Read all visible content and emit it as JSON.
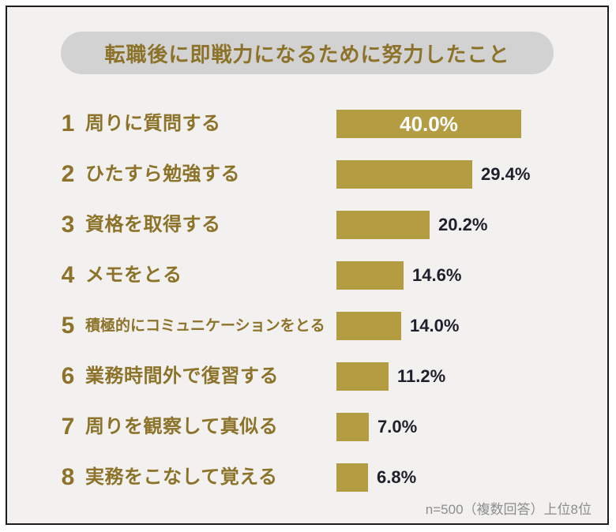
{
  "header": {
    "title": "転職後に即戦力になるために努力したこと"
  },
  "footer": {
    "note": "n=500（複数回答）上位8位"
  },
  "colors": {
    "bar": "#b39c42",
    "gold_text": "#8c7329",
    "value_text": "#20202c",
    "inside_bar_value": "#ffffff",
    "pill_bg": "#d2d2d2",
    "panel_bg": "#f2f1ef",
    "border": "#1c1c1c",
    "note_text": "#8d8d8d"
  },
  "chart_data": {
    "type": "bar",
    "orientation": "horizontal",
    "title": "転職後に即戦力になるために努力したこと",
    "ranks": [
      "1",
      "2",
      "3",
      "4",
      "5",
      "6",
      "7",
      "8"
    ],
    "categories": [
      "周りに質問する",
      "ひたすら勉強する",
      "資格を取得する",
      "メモをとる",
      "積極的にコミュニケーションをとる",
      "業務時間外で復習する",
      "周りを観察して真似る",
      "実務をこなして覚える"
    ],
    "values": [
      40.0,
      29.4,
      20.2,
      14.6,
      14.0,
      11.2,
      7.0,
      6.8
    ],
    "value_labels": [
      "40.0%",
      "29.4%",
      "20.2%",
      "14.6%",
      "14.0%",
      "11.2%",
      "7.0%",
      "6.8%"
    ],
    "value_label_position": [
      "inside",
      "outside",
      "outside",
      "outside",
      "outside",
      "outside",
      "outside",
      "outside"
    ],
    "xlim": [
      0,
      40
    ],
    "grid": false,
    "legend": false,
    "note": "n=500（複数回答）上位8位"
  }
}
